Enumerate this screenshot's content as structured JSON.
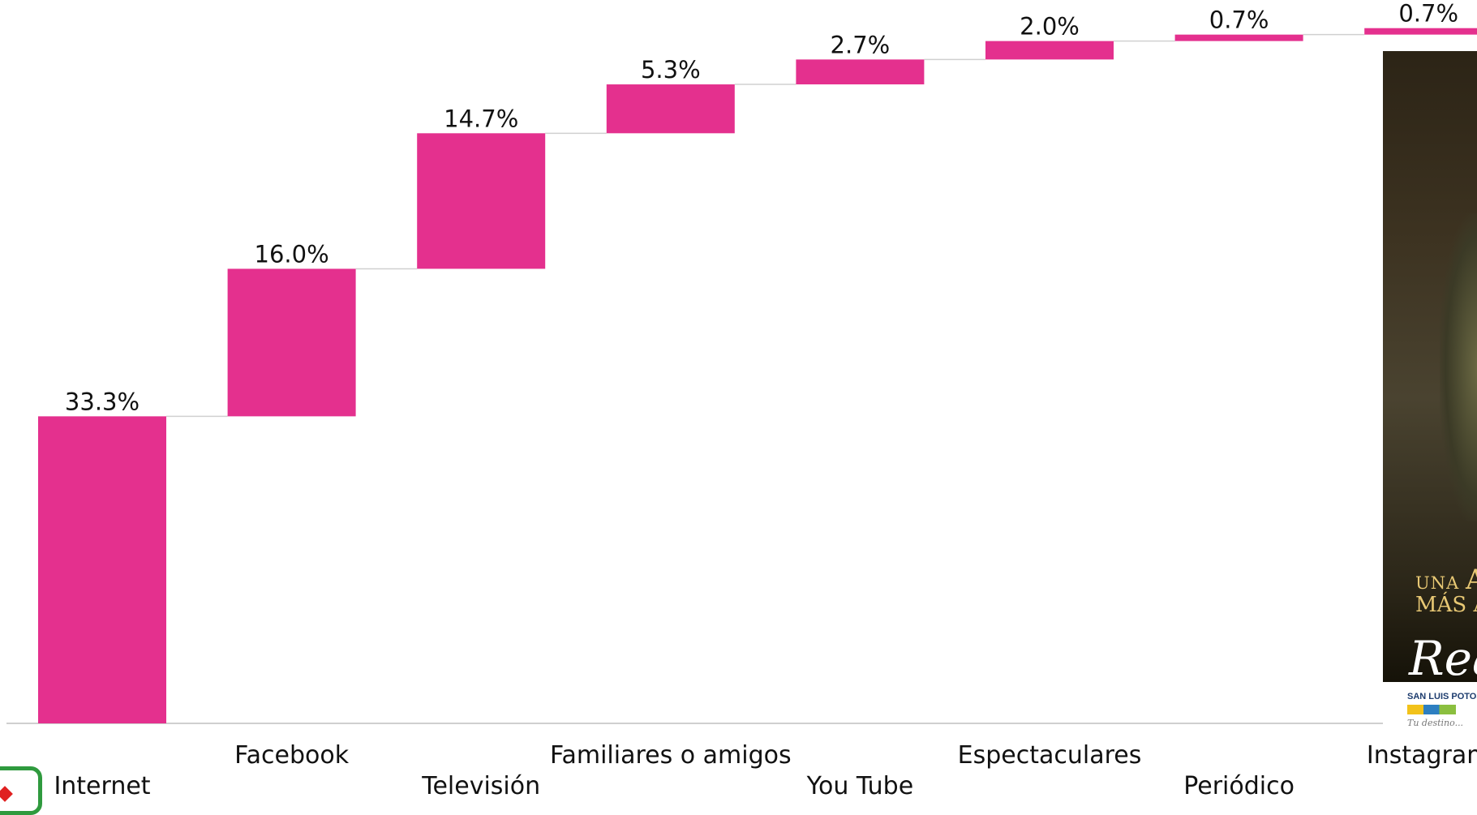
{
  "chart_data": {
    "type": "waterfall",
    "categories": [
      "Internet",
      "Facebook",
      "Televisión",
      "Familiares o amigos",
      "You Tube",
      "Espectaculares",
      "Periódico",
      "Instagram"
    ],
    "values": [
      33.3,
      16.0,
      14.7,
      5.3,
      2.7,
      2.0,
      0.7,
      0.7
    ],
    "data_labels": [
      "33.3%",
      "16.0%",
      "14.7%",
      "5.3%",
      "2.7%",
      "2.0%",
      "0.7%",
      "0.7%"
    ],
    "ylim": [
      0,
      78
    ],
    "bar_color": "#E4308E",
    "connector_color": "#d0d0d0",
    "axis_color": "#cfcfcf",
    "grid": false,
    "legend": "none"
  },
  "poster": {
    "line1_small": "UNA",
    "line1_big": "A",
    "line2": "MÁS A",
    "line3": "Real",
    "brand": "SAN LUIS POTOSÍ",
    "tagline": "Tu destino..."
  }
}
